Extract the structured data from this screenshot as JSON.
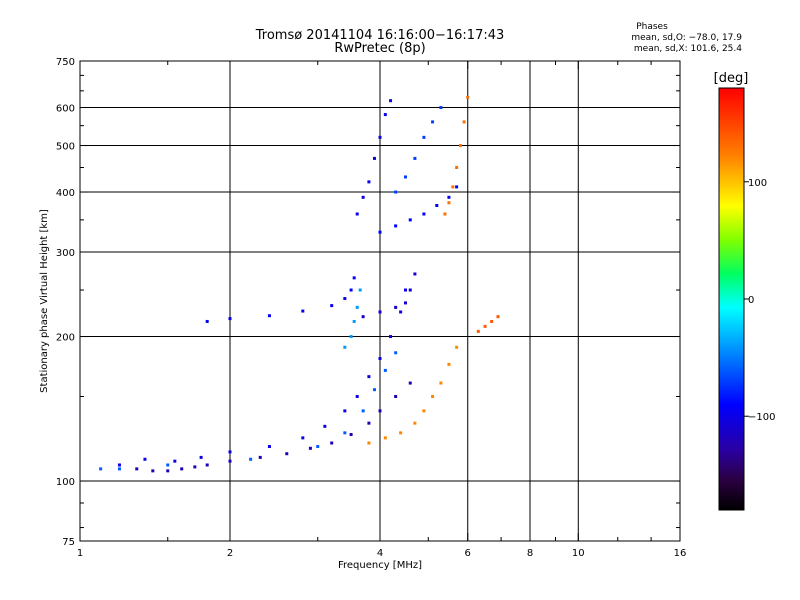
{
  "header": {
    "title_line1": "Tromsø 20141104 16:16:00−16:17:43",
    "title_line2": "RwPretec (8p)"
  },
  "info": {
    "head": "Phases",
    "line1": "mean, sd,O: −78.0, 17.9",
    "line2": "mean, sd,X: 101.6, 25.4"
  },
  "colorbar": {
    "unit": "[deg]",
    "ticks": [
      {
        "value": 100,
        "label": "100"
      },
      {
        "value": 0,
        "label": "0"
      },
      {
        "value": -100,
        "label": "−100"
      }
    ],
    "range": [
      -180,
      180
    ]
  },
  "chart_data": {
    "type": "scatter",
    "title": "Tromsø 20141104 16:16:00−16:17:43 RwPretec (8p)",
    "xlabel": "Frequency [MHz]",
    "ylabel": "Stationary phase Virtual Height [km]",
    "xscale": "log",
    "yscale": "log",
    "xlim": [
      1,
      16
    ],
    "ylim": [
      75,
      750
    ],
    "xticks": [
      1,
      2,
      4,
      6,
      8,
      10,
      16
    ],
    "yticks": [
      75,
      100,
      200,
      300,
      400,
      500,
      600,
      750
    ],
    "x_gridlines": [
      2,
      4,
      6,
      8,
      10
    ],
    "y_gridlines": [
      100,
      200,
      300,
      400,
      500,
      600
    ],
    "color_variable": "phase [deg]",
    "traces": [
      {
        "name": "",
        "phase": -120,
        "points": [
          [
            1.3,
            106
          ],
          [
            1.4,
            105
          ],
          [
            1.5,
            105
          ],
          [
            1.6,
            106
          ],
          [
            1.7,
            107
          ],
          [
            1.8,
            108
          ],
          [
            2.0,
            110
          ],
          [
            2.3,
            112
          ],
          [
            2.6,
            114
          ],
          [
            2.9,
            117
          ],
          [
            3.2,
            120
          ],
          [
            3.5,
            125
          ],
          [
            3.8,
            132
          ],
          [
            4.0,
            140
          ],
          [
            4.3,
            150
          ],
          [
            4.6,
            160
          ]
        ]
      },
      {
        "name": "",
        "phase": -100,
        "points": [
          [
            1.2,
            108
          ],
          [
            1.35,
            111
          ],
          [
            1.55,
            110
          ],
          [
            1.75,
            112
          ],
          [
            2.0,
            115
          ],
          [
            2.4,
            118
          ],
          [
            2.8,
            123
          ],
          [
            3.1,
            130
          ],
          [
            3.4,
            140
          ],
          [
            3.6,
            150
          ],
          [
            3.8,
            165
          ],
          [
            4.0,
            180
          ],
          [
            4.2,
            200
          ],
          [
            4.4,
            225
          ],
          [
            4.5,
            250
          ]
        ]
      },
      {
        "name": "",
        "phase": -60,
        "points": [
          [
            1.1,
            106
          ],
          [
            1.2,
            106
          ],
          [
            1.5,
            108
          ],
          [
            2.2,
            111
          ],
          [
            3.0,
            118
          ],
          [
            3.4,
            126
          ],
          [
            3.7,
            140
          ],
          [
            3.9,
            155
          ],
          [
            4.1,
            170
          ],
          [
            4.3,
            185
          ]
        ]
      },
      {
        "name": "",
        "phase": 120,
        "points": [
          [
            3.8,
            120
          ],
          [
            4.1,
            123
          ],
          [
            4.4,
            126
          ],
          [
            4.7,
            132
          ],
          [
            4.9,
            140
          ],
          [
            5.1,
            150
          ],
          [
            5.3,
            160
          ],
          [
            5.5,
            175
          ],
          [
            5.7,
            190
          ]
        ]
      },
      {
        "name": "",
        "phase": -95,
        "points": [
          [
            1.8,
            215
          ],
          [
            2.0,
            218
          ],
          [
            2.4,
            221
          ],
          [
            2.8,
            226
          ],
          [
            3.2,
            232
          ],
          [
            3.4,
            240
          ],
          [
            3.5,
            250
          ],
          [
            3.55,
            265
          ]
        ]
      },
      {
        "name": "",
        "phase": -40,
        "points": [
          [
            3.4,
            190
          ],
          [
            3.5,
            200
          ],
          [
            3.55,
            215
          ],
          [
            3.6,
            230
          ],
          [
            3.65,
            250
          ]
        ]
      },
      {
        "name": "",
        "phase": -110,
        "points": [
          [
            3.7,
            220
          ],
          [
            4.0,
            225
          ],
          [
            4.3,
            230
          ],
          [
            4.5,
            235
          ],
          [
            4.6,
            250
          ],
          [
            4.7,
            270
          ]
        ]
      },
      {
        "name": "",
        "phase": -100,
        "points": [
          [
            3.6,
            360
          ],
          [
            3.7,
            390
          ],
          [
            3.8,
            420
          ],
          [
            3.9,
            470
          ],
          [
            4.0,
            520
          ],
          [
            4.1,
            580
          ],
          [
            4.2,
            620
          ]
        ]
      },
      {
        "name": "",
        "phase": -90,
        "points": [
          [
            4.0,
            330
          ],
          [
            4.3,
            340
          ],
          [
            4.6,
            350
          ],
          [
            4.9,
            360
          ],
          [
            5.2,
            375
          ],
          [
            5.5,
            390
          ],
          [
            5.7,
            410
          ]
        ]
      },
      {
        "name": "",
        "phase": -70,
        "points": [
          [
            4.3,
            400
          ],
          [
            4.5,
            430
          ],
          [
            4.7,
            470
          ],
          [
            4.9,
            520
          ],
          [
            5.1,
            560
          ],
          [
            5.3,
            600
          ]
        ]
      },
      {
        "name": "",
        "phase": 130,
        "points": [
          [
            5.4,
            360
          ],
          [
            5.5,
            380
          ],
          [
            5.6,
            410
          ],
          [
            5.7,
            450
          ],
          [
            5.8,
            500
          ],
          [
            5.9,
            560
          ],
          [
            6.0,
            630
          ]
        ]
      },
      {
        "name": "",
        "phase": 140,
        "points": [
          [
            6.3,
            205
          ],
          [
            6.5,
            210
          ],
          [
            6.7,
            215
          ],
          [
            6.9,
            220
          ]
        ]
      }
    ]
  }
}
